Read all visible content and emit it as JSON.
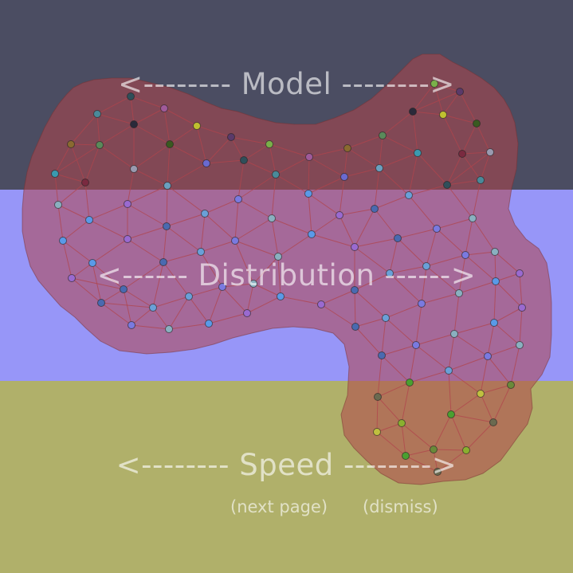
{
  "colors": {
    "model_band": "#4b4d62",
    "distribution_band": "#9796f8",
    "speed_band": "#b0b06a",
    "blob_fill": "#b0454a",
    "mesh_line": "#b0444c"
  },
  "hud": {
    "model_label": "<-------- Model -------->",
    "distribution_label": "<------ Distribution ------>",
    "speed_label": "<-------- Speed -------->",
    "next_page": "(next page)",
    "dismiss": "(dismiss)"
  }
}
